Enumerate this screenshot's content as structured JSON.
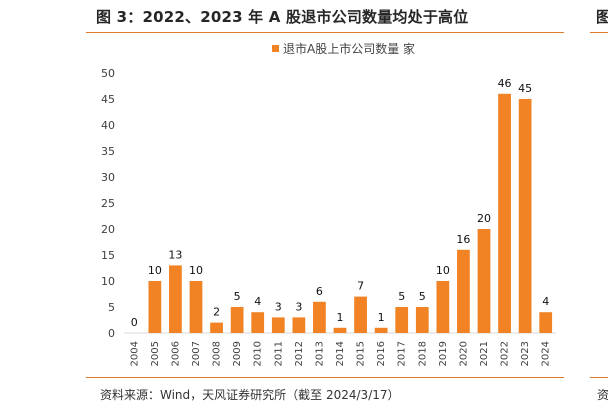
{
  "header": {
    "title": "图 3：2022、2023 年 A 股退市公司数量均处于高位"
  },
  "next_panel": {
    "title_fragment": "图",
    "source_fragment": "资"
  },
  "footer": {
    "source": "资料来源：Wind，天风证券研究所（截至 2024/3/17）"
  },
  "chart_data": {
    "type": "bar",
    "title": "",
    "xlabel": "",
    "ylabel": "",
    "ylim": [
      0,
      50
    ],
    "yticks": [
      0,
      5,
      10,
      15,
      20,
      25,
      30,
      35,
      40,
      45,
      50
    ],
    "grid": false,
    "legend": "top-center",
    "categories": [
      "2004",
      "2005",
      "2006",
      "2007",
      "2008",
      "2009",
      "2010",
      "2011",
      "2012",
      "2013",
      "2014",
      "2015",
      "2016",
      "2017",
      "2018",
      "2019",
      "2020",
      "2021",
      "2022",
      "2023",
      "2024"
    ],
    "series": [
      {
        "name": "退市A股上市公司数量 家",
        "color": "#f28325",
        "values": [
          0,
          10,
          13,
          10,
          2,
          5,
          4,
          3,
          3,
          6,
          1,
          7,
          1,
          5,
          5,
          10,
          16,
          20,
          46,
          45,
          4
        ]
      }
    ]
  }
}
